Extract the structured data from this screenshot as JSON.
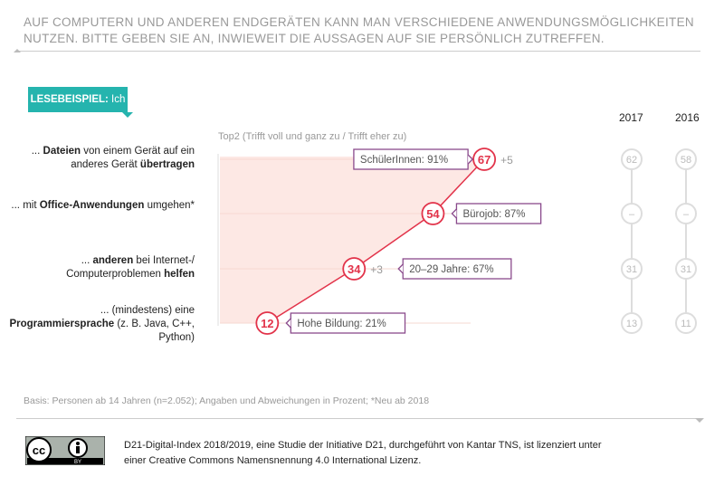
{
  "title": "AUF COMPUTERN UND ANDEREN ENDGERÄTEN KANN MAN VERSCHIEDENE ANWENDUNGSMÖGLICHKEITEN NUTZEN. BITTE GEBEN SIE AN, INWIEWEIT DIE AUSSAGEN AUF SIE PERSÖNLICH ZUTREFFEN.",
  "lesebeispiel": {
    "bold": "LESEBEISPIEL:",
    "rest": " Ich kann ..."
  },
  "colors": {
    "line": "#e2334a",
    "fill": "#fde8e4",
    "callout": "#8a4a8c",
    "teal": "#25b4ae"
  },
  "chart_data": {
    "type": "line",
    "subtitle": "Top2 (Trifft voll und ganz zu / Trifft eher zu)",
    "unit": "%",
    "categories": [
      [
        "... ",
        "Dateien",
        " von einem Gerät auf ein anderes Gerät ",
        "übertragen"
      ],
      [
        "... mit ",
        "Office-Anwendungen",
        " umgehen*",
        ""
      ],
      [
        "... ",
        "anderen",
        " bei Internet-/ Computerproblemen ",
        "helfen"
      ],
      [
        "... (mindestens) eine ",
        "Programmiersprache",
        " (z. B. Java, C++, Python)",
        ""
      ]
    ],
    "values_2018": [
      67,
      54,
      34,
      12
    ],
    "change": [
      "+5",
      "",
      "+3",
      ""
    ],
    "callouts": [
      "SchülerInnen: 91%",
      "Bürojob: 87%",
      "20–29 Jahre: 67%",
      "Hohe Bildung: 21%"
    ],
    "years": [
      "2017",
      "2016"
    ],
    "values_2017": [
      "62",
      "–",
      "31",
      "13"
    ],
    "values_2016": [
      "58",
      "–",
      "31",
      "11"
    ]
  },
  "basis": "Basis: Personen ab 14 Jahren (n=2.052); Angaben und Abweichungen in Prozent; *Neu ab 2018",
  "license": {
    "line1": "D21-Digital-Index 2018/2019, eine Studie der Initiative D21, durchgeführt von Kantar TNS, ist lizenziert unter",
    "line2": "einer Creative Commons Namensnennung 4.0 International Lizenz.",
    "badge": "BY"
  }
}
